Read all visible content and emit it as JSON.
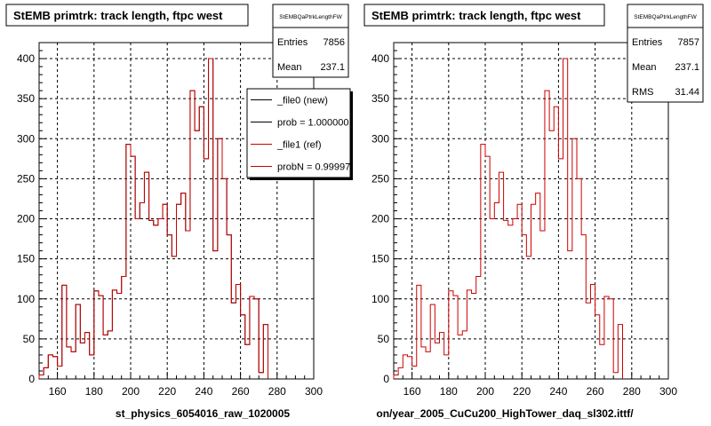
{
  "chart_data": [
    {
      "type": "histogram",
      "title": "StEMB primtrk: track length, ftpc west",
      "xlabel": "st_physics_6054016_raw_1020005",
      "ylabel": "",
      "xlim": [
        150,
        300
      ],
      "ylim": [
        0,
        420
      ],
      "x_ticks": [
        160,
        180,
        200,
        220,
        240,
        260,
        280,
        300
      ],
      "y_ticks": [
        0,
        50,
        100,
        150,
        200,
        250,
        300,
        350,
        400
      ],
      "grid": true,
      "bin_width": 2.5,
      "stats": {
        "name": "StEMBQaPtrkLengthFW",
        "rows": [
          {
            "label": "Entries",
            "value": "7856"
          },
          {
            "label": "Mean",
            "value": "237.1"
          }
        ]
      },
      "legend": {
        "placement": "top-right",
        "entries": [
          {
            "text": "_file0 (new)",
            "color": "#000000"
          },
          {
            "text": "prob = 1.000000",
            "color": "#000000"
          },
          {
            "text": "_file1 (ref)",
            "color": "#cc0000"
          },
          {
            "text": "probN = 0.99997",
            "color": "#cc0000"
          }
        ]
      },
      "series": [
        {
          "name": "_file0 (new)",
          "color": "#000000",
          "values": [
            5,
            14,
            30,
            28,
            16,
            117,
            40,
            34,
            93,
            45,
            58,
            30,
            110,
            104,
            55,
            60,
            111,
            107,
            128,
            293,
            278,
            200,
            220,
            258,
            198,
            192,
            200,
            218,
            180,
            153,
            218,
            232,
            185,
            360,
            310,
            340,
            275,
            400,
            160,
            300,
            250,
            180,
            95,
            118,
            80,
            43,
            103,
            100,
            8,
            68
          ]
        },
        {
          "name": "_file1 (ref)",
          "color": "#cc0000",
          "values": [
            5,
            14,
            30,
            28,
            16,
            117,
            40,
            34,
            93,
            45,
            58,
            30,
            110,
            104,
            55,
            60,
            111,
            107,
            128,
            293,
            278,
            200,
            220,
            258,
            198,
            192,
            200,
            218,
            180,
            153,
            218,
            232,
            185,
            360,
            310,
            340,
            275,
            400,
            160,
            300,
            250,
            180,
            95,
            118,
            80,
            43,
            103,
            100,
            8,
            68
          ]
        }
      ]
    },
    {
      "type": "histogram",
      "title": "StEMB primtrk: track length, ftpc west",
      "xlabel": "on/year_2005_CuCu200_HighTower_daq_sl302.ittf/",
      "ylabel": "",
      "xlim": [
        150,
        300
      ],
      "ylim": [
        0,
        420
      ],
      "x_ticks": [
        160,
        180,
        200,
        220,
        240,
        260,
        280,
        300
      ],
      "y_ticks": [
        0,
        50,
        100,
        150,
        200,
        250,
        300,
        350,
        400
      ],
      "grid": true,
      "bin_width": 2.5,
      "stats": {
        "name": "StEMBQaPtrkLengthFW",
        "rows": [
          {
            "label": "Entries",
            "value": "7857"
          },
          {
            "label": "Mean",
            "value": "237.1"
          },
          {
            "label": "RMS",
            "value": "31.44"
          }
        ]
      },
      "series": [
        {
          "name": "",
          "color": "#cc0000",
          "values": [
            5,
            14,
            30,
            28,
            16,
            117,
            40,
            34,
            93,
            45,
            58,
            30,
            110,
            104,
            55,
            60,
            111,
            107,
            128,
            293,
            278,
            200,
            220,
            258,
            198,
            192,
            200,
            218,
            180,
            153,
            218,
            232,
            185,
            360,
            310,
            340,
            275,
            400,
            160,
            300,
            250,
            180,
            95,
            118,
            80,
            43,
            103,
            100,
            8,
            68
          ]
        }
      ]
    }
  ]
}
